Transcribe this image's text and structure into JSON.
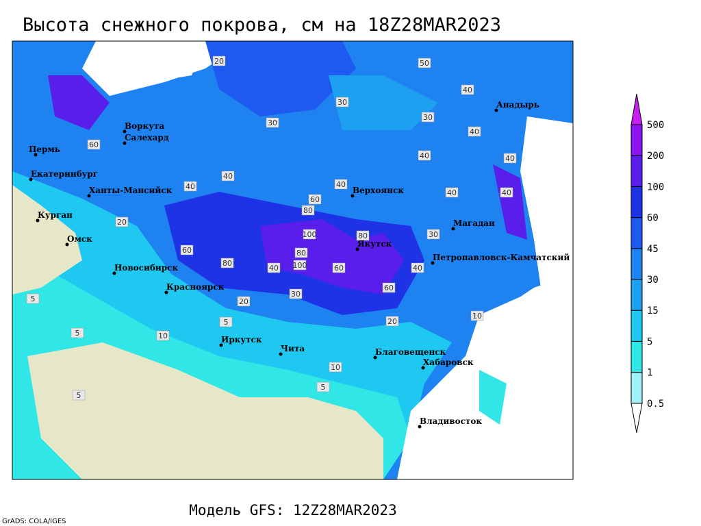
{
  "title": "Высота снежного покрова, см на 18Z28MAR2023",
  "footer": "Модель GFS: 12Z28MAR2023",
  "credit": "GrADS: COLA/IGES",
  "legend": {
    "levels": [
      0.5,
      1,
      5,
      15,
      30,
      45,
      60,
      100,
      200,
      500
    ],
    "colors": [
      "#ffffff",
      "#a0f0f8",
      "#30e6e6",
      "#1ec8f0",
      "#1ea0f0",
      "#1e82f0",
      "#1e5af0",
      "#1e32e6",
      "#5a1eeb",
      "#8c14f0",
      "#c81ef0"
    ]
  },
  "cities": [
    "Пермь",
    "Екатеринбург",
    "Ханты-Мансийск",
    "Курган",
    "Омск",
    "Новосибирск",
    "Красноярск",
    "Иркутск",
    "Чита",
    "Благовещенск",
    "Хабаровск",
    "Владивосток",
    "Якутск",
    "Верхоянск",
    "Магадан",
    "Петропавловск-Камчатский",
    "Анадырь",
    "Воркута",
    "Салехард"
  ],
  "map_labels": [
    20,
    30,
    30,
    50,
    40,
    40,
    60,
    40,
    40,
    30,
    40,
    40,
    60,
    80,
    100,
    80,
    80,
    100,
    80,
    60,
    60,
    40,
    60,
    40,
    40,
    30,
    20,
    20,
    5,
    5,
    5,
    10,
    10,
    10,
    5,
    5,
    20,
    40,
    30,
    40
  ]
}
